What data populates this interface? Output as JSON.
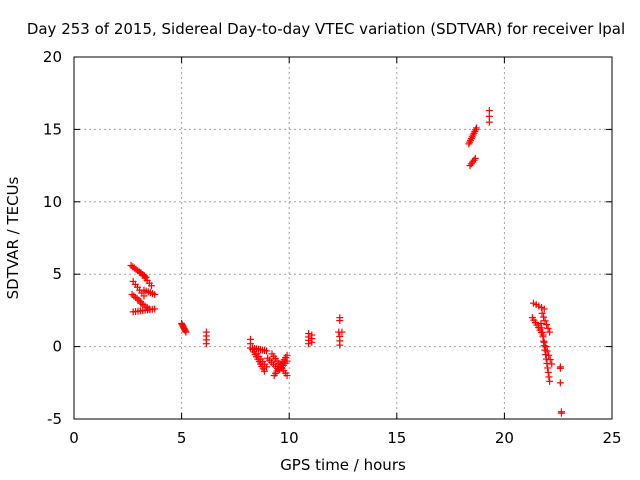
{
  "chart_data": {
    "type": "scatter",
    "title": "Day 253 of 2015, Sidereal Day-to-day VTEC variation (SDTVAR) for receiver lpal",
    "xlabel": "GPS time / hours",
    "ylabel": "SDTVAR / TECUs",
    "xlim": [
      0,
      25
    ],
    "ylim": [
      -5,
      20
    ],
    "xticks": [
      "0",
      "5",
      "10",
      "15",
      "20",
      "25"
    ],
    "yticks": [
      "-5",
      "0",
      "5",
      "10",
      "15",
      "20"
    ],
    "grid": true,
    "marker": "plus",
    "color": "#ff0000",
    "segments": [
      {
        "x0": 2.65,
        "y0": 5.6,
        "x1": 3.35,
        "y1": 4.8,
        "n": 10
      },
      {
        "x0": 3.1,
        "y0": 5.1,
        "x1": 3.6,
        "y1": 4.2,
        "n": 6
      },
      {
        "x0": 2.75,
        "y0": 4.5,
        "x1": 3.25,
        "y1": 3.5,
        "n": 6
      },
      {
        "x0": 3.25,
        "y0": 3.9,
        "x1": 3.75,
        "y1": 3.6,
        "n": 6
      },
      {
        "x0": 2.7,
        "y0": 3.6,
        "x1": 3.1,
        "y1": 3.1,
        "n": 6
      },
      {
        "x0": 2.75,
        "y0": 2.4,
        "x1": 3.75,
        "y1": 2.6,
        "n": 10
      },
      {
        "x0": 3.1,
        "y0": 3.0,
        "x1": 3.5,
        "y1": 2.6,
        "n": 5
      },
      {
        "x0": 5.0,
        "y0": 1.6,
        "x1": 5.2,
        "y1": 1.0,
        "n": 8
      },
      {
        "x0": 6.15,
        "y0": 1.0,
        "x1": 6.15,
        "y1": 0.2,
        "n": 4
      },
      {
        "x0": 8.2,
        "y0": 0.5,
        "x1": 8.2,
        "y1": -0.1,
        "n": 3
      },
      {
        "x0": 8.3,
        "y0": -0.1,
        "x1": 8.95,
        "y1": -0.3,
        "n": 8
      },
      {
        "x0": 8.3,
        "y0": -0.2,
        "x1": 8.85,
        "y1": -1.7,
        "n": 10
      },
      {
        "x0": 8.5,
        "y0": -0.5,
        "x1": 8.95,
        "y1": -1.4,
        "n": 6
      },
      {
        "x0": 9.0,
        "y0": -0.8,
        "x1": 9.45,
        "y1": -1.5,
        "n": 6
      },
      {
        "x0": 9.2,
        "y0": -0.5,
        "x1": 9.9,
        "y1": -2.0,
        "n": 10
      },
      {
        "x0": 9.3,
        "y0": -2.0,
        "x1": 9.9,
        "y1": -0.6,
        "n": 10
      },
      {
        "x0": 9.55,
        "y0": -1.6,
        "x1": 9.9,
        "y1": -1.0,
        "n": 5
      },
      {
        "x0": 10.9,
        "y0": 0.9,
        "x1": 10.9,
        "y1": 0.2,
        "n": 4
      },
      {
        "x0": 11.05,
        "y0": 0.8,
        "x1": 11.05,
        "y1": 0.3,
        "n": 3
      },
      {
        "x0": 12.35,
        "y0": 2.0,
        "x1": 12.35,
        "y1": 1.8,
        "n": 2
      },
      {
        "x0": 12.3,
        "y0": 1.0,
        "x1": 12.45,
        "y1": 1.0,
        "n": 2
      },
      {
        "x0": 12.35,
        "y0": 0.7,
        "x1": 12.35,
        "y1": 0.1,
        "n": 3
      },
      {
        "x0": 18.35,
        "y0": 14.0,
        "x1": 18.7,
        "y1": 15.1,
        "n": 10
      },
      {
        "x0": 18.4,
        "y0": 12.5,
        "x1": 18.65,
        "y1": 13.0,
        "n": 5
      },
      {
        "x0": 19.3,
        "y0": 16.3,
        "x1": 19.3,
        "y1": 15.5,
        "n": 3
      },
      {
        "x0": 21.35,
        "y0": 3.0,
        "x1": 21.85,
        "y1": 2.6,
        "n": 5
      },
      {
        "x0": 21.3,
        "y0": 2.0,
        "x1": 21.8,
        "y1": 0.8,
        "n": 8
      },
      {
        "x0": 21.75,
        "y0": 2.3,
        "x1": 22.1,
        "y1": 1.0,
        "n": 6
      },
      {
        "x0": 21.7,
        "y0": 1.6,
        "x1": 22.1,
        "y1": -2.4,
        "n": 14
      },
      {
        "x0": 21.85,
        "y0": 0.3,
        "x1": 22.2,
        "y1": -1.2,
        "n": 6
      },
      {
        "x0": 22.6,
        "y0": -1.4,
        "x1": 22.6,
        "y1": -1.5,
        "n": 2
      },
      {
        "x0": 22.6,
        "y0": -2.5,
        "x1": 22.6,
        "y1": -2.5,
        "n": 1
      },
      {
        "x0": 22.65,
        "y0": -4.5,
        "x1": 22.65,
        "y1": -4.6,
        "n": 2
      }
    ]
  }
}
